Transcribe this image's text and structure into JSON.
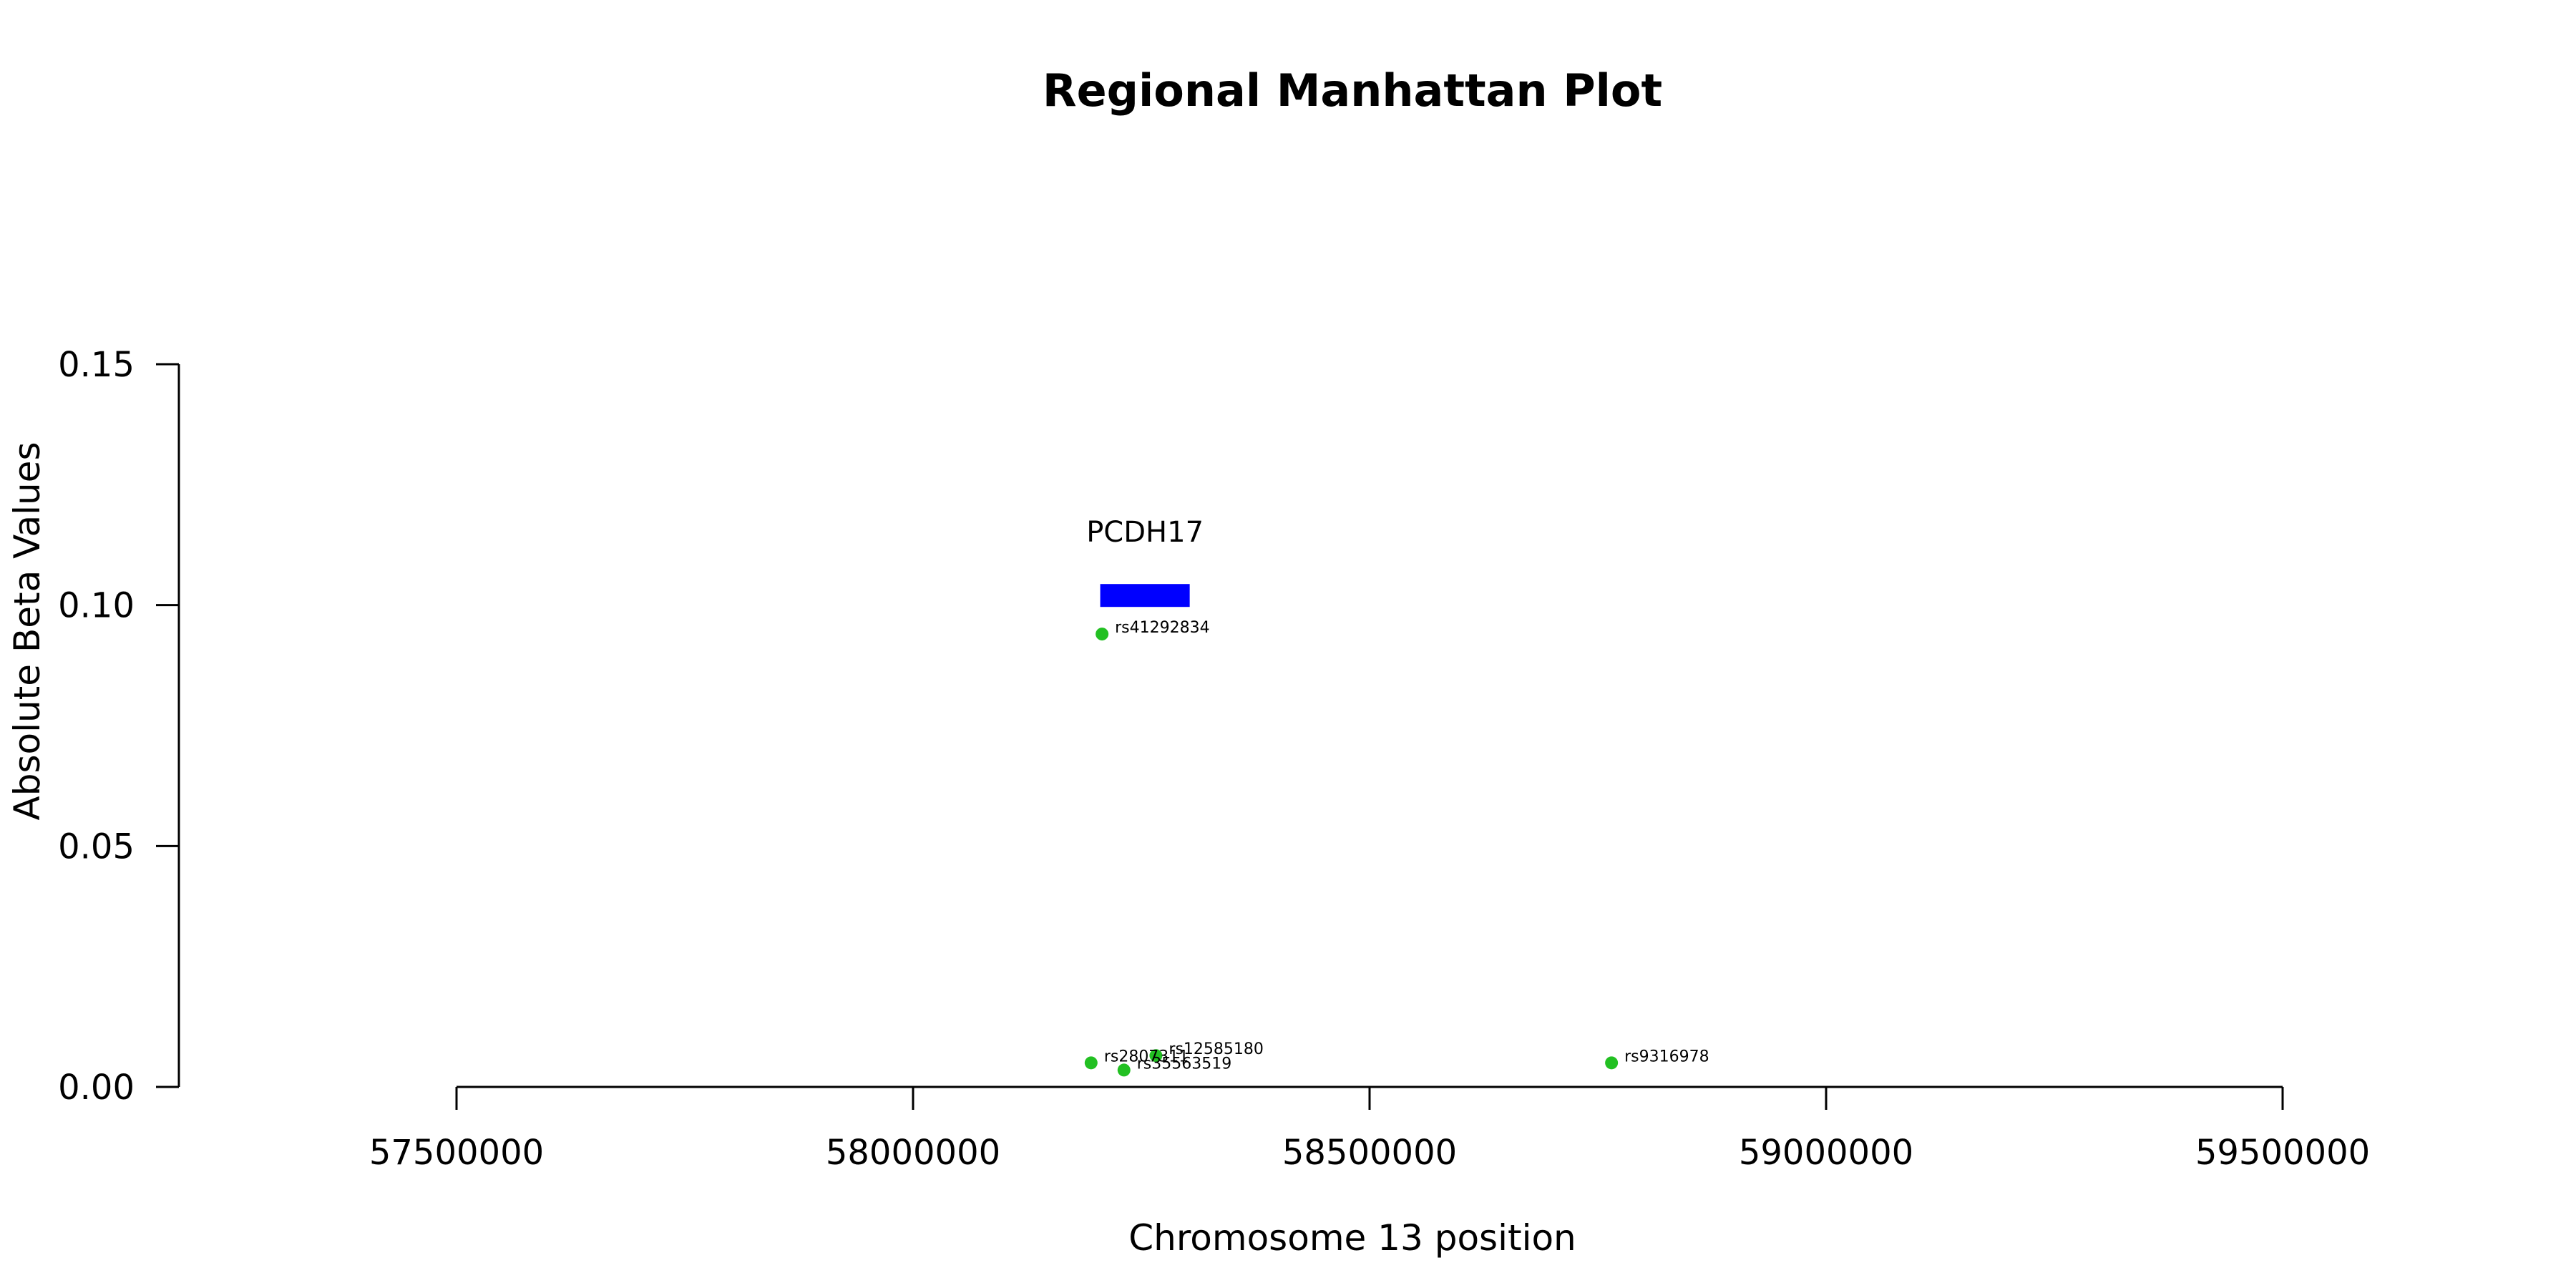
{
  "chart_data": {
    "type": "scatter",
    "title": "Regional Manhattan Plot",
    "xlabel": "Chromosome 13 position",
    "ylabel": "Absolute Beta Values",
    "xlim": [
      57500000,
      59500000
    ],
    "ylim": [
      0,
      0.15
    ],
    "x_ticks": [
      57500000,
      58000000,
      58500000,
      59000000,
      59500000
    ],
    "x_tick_labels": [
      "57500000",
      "58000000",
      "58500000",
      "59000000",
      "59500000"
    ],
    "y_ticks": [
      0,
      0.05,
      0.1,
      0.15
    ],
    "y_tick_labels": [
      "0.00",
      "0.05",
      "0.10",
      "0.15"
    ],
    "grid": false,
    "point_color": "#22c022",
    "points": [
      {
        "label": "rs41292834",
        "x": 58207000,
        "y": 0.094
      },
      {
        "label": "rs12585180",
        "x": 58266000,
        "y": 0.0065
      },
      {
        "label": "rs2807311",
        "x": 58195000,
        "y": 0.005
      },
      {
        "label": "rs35563519",
        "x": 58231000,
        "y": 0.0035
      },
      {
        "label": "rs9316978",
        "x": 58765000,
        "y": 0.005
      }
    ],
    "genes": [
      {
        "name": "PCDH17",
        "start": 58205000,
        "end": 58303000,
        "y": 0.102,
        "color": "#0000ff"
      }
    ]
  }
}
